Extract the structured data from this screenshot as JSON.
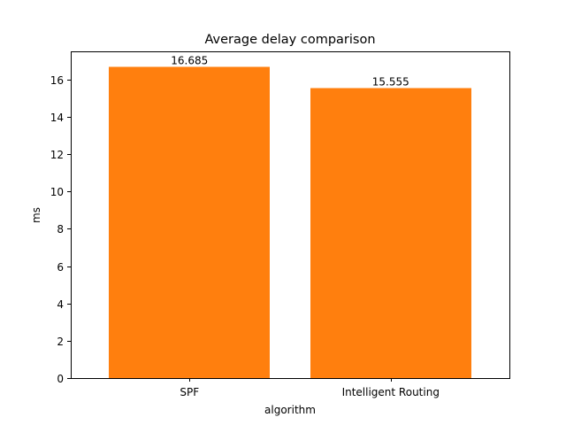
{
  "chart_data": {
    "type": "bar",
    "title": "Average delay comparison",
    "xlabel": "algorithm",
    "ylabel": "ms",
    "categories": [
      "SPF",
      "Intelligent Routing"
    ],
    "values": [
      16.685,
      15.555
    ],
    "data_labels": [
      "16.685",
      "15.555"
    ],
    "ylim": [
      0,
      17.519
    ],
    "yticks": [
      0,
      2,
      4,
      6,
      8,
      10,
      12,
      14,
      16
    ],
    "ytick_labels": [
      "0",
      "2",
      "4",
      "6",
      "8",
      "10",
      "12",
      "14",
      "16"
    ],
    "bar_color": "#ff7f0e",
    "grid": false,
    "legend": "none"
  }
}
